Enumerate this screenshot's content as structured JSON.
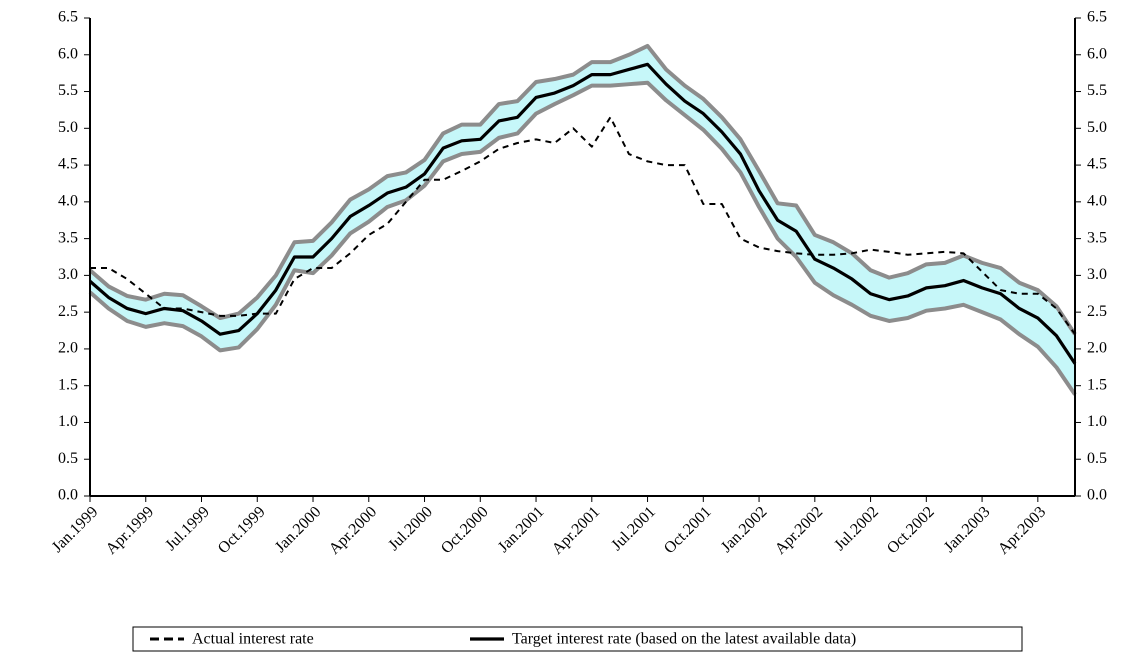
{
  "chart_data": {
    "type": "line",
    "categories": [
      "Jan.1999",
      null,
      null,
      "Apr.1999",
      null,
      null,
      "Jul.1999",
      null,
      null,
      "Oct.1999",
      null,
      null,
      "Jan.2000",
      null,
      null,
      "Apr.2000",
      null,
      null,
      "Jul.2000",
      null,
      null,
      "Oct.2000",
      null,
      null,
      "Jan.2001",
      null,
      null,
      "Apr.2001",
      null,
      null,
      "Jul.2001",
      null,
      null,
      "Oct.2001",
      null,
      null,
      "Jan.2002",
      null,
      null,
      "Apr.2002",
      null,
      null,
      "Jul.2002",
      null,
      null,
      "Oct.2002",
      null,
      null,
      "Jan.2003",
      null,
      null,
      "Apr.2003",
      null,
      null
    ],
    "series": [
      {
        "name": "Actual interest rate",
        "color": "#000000",
        "dash": true,
        "values": [
          3.1,
          3.1,
          2.95,
          2.75,
          2.55,
          2.55,
          2.5,
          2.45,
          2.45,
          2.48,
          2.48,
          2.95,
          3.1,
          3.1,
          3.3,
          3.55,
          3.7,
          4.0,
          4.3,
          4.3,
          4.42,
          4.55,
          4.72,
          4.8,
          4.85,
          4.8,
          5.0,
          4.75,
          5.15,
          4.65,
          4.55,
          4.5,
          4.5,
          3.97,
          3.97,
          3.5,
          3.38,
          3.33,
          3.3,
          3.28,
          3.28,
          3.3,
          3.35,
          3.32,
          3.28,
          3.3,
          3.32,
          3.3,
          3.05,
          2.8,
          2.75,
          2.75,
          2.55,
          2.2
        ]
      },
      {
        "name": "Target interest rate (based on the latest available data)",
        "color": "#000000",
        "dash": false,
        "values": [
          2.92,
          2.7,
          2.55,
          2.48,
          2.55,
          2.52,
          2.38,
          2.2,
          2.25,
          2.48,
          2.8,
          3.25,
          3.25,
          3.5,
          3.8,
          3.95,
          4.12,
          4.2,
          4.38,
          4.73,
          4.83,
          4.85,
          5.1,
          5.15,
          5.42,
          5.48,
          5.58,
          5.73,
          5.73,
          5.8,
          5.87,
          5.6,
          5.37,
          5.2,
          4.95,
          4.65,
          4.15,
          3.75,
          3.6,
          3.22,
          3.1,
          2.95,
          2.75,
          2.67,
          2.72,
          2.83,
          2.86,
          2.93,
          2.83,
          2.75,
          2.55,
          2.42,
          2.18,
          1.8
        ]
      }
    ],
    "band": {
      "color": "#c6f7f9",
      "line_color": "#8c8c8c",
      "upper": [
        3.07,
        2.85,
        2.72,
        2.67,
        2.75,
        2.73,
        2.58,
        2.42,
        2.48,
        2.7,
        3.0,
        3.45,
        3.47,
        3.72,
        4.03,
        4.17,
        4.35,
        4.4,
        4.57,
        4.93,
        5.05,
        5.05,
        5.33,
        5.37,
        5.63,
        5.67,
        5.73,
        5.9,
        5.9,
        6.0,
        6.12,
        5.8,
        5.58,
        5.4,
        5.15,
        4.85,
        4.42,
        3.98,
        3.95,
        3.55,
        3.45,
        3.3,
        3.07,
        2.97,
        3.03,
        3.15,
        3.17,
        3.27,
        3.17,
        3.1,
        2.9,
        2.8,
        2.58,
        2.2
      ],
      "lower": [
        2.77,
        2.55,
        2.38,
        2.3,
        2.35,
        2.31,
        2.17,
        1.98,
        2.02,
        2.27,
        2.6,
        3.07,
        3.03,
        3.27,
        3.57,
        3.73,
        3.93,
        4.02,
        4.22,
        4.55,
        4.65,
        4.68,
        4.87,
        4.93,
        5.2,
        5.33,
        5.45,
        5.58,
        5.58,
        5.6,
        5.62,
        5.38,
        5.18,
        4.98,
        4.72,
        4.4,
        3.93,
        3.5,
        3.25,
        2.9,
        2.73,
        2.6,
        2.45,
        2.38,
        2.42,
        2.52,
        2.55,
        2.6,
        2.5,
        2.4,
        2.2,
        2.03,
        1.75,
        1.38
      ]
    },
    "ylim": [
      0,
      6.5
    ],
    "yticks": [
      {
        "value": 0,
        "label": "0.0"
      },
      0.5,
      {
        "value": 1,
        "label": "1.0"
      },
      1.5,
      {
        "value": 2,
        "label": "2.0"
      },
      2.5,
      {
        "value": 3,
        "label": "3.0"
      },
      3.5,
      {
        "value": 4,
        "label": "4.0"
      },
      4.5,
      {
        "value": 5,
        "label": "5.0"
      },
      5.5,
      {
        "value": 6,
        "label": "6.0"
      },
      6.5
    ],
    "y2lim": [
      0,
      6.5
    ],
    "y2ticks": [
      {
        "value": 0,
        "label": "0.0"
      },
      0.5,
      {
        "value": 1,
        "label": "1.0"
      },
      1.5,
      {
        "value": 2,
        "label": "2.0"
      },
      2.5,
      {
        "value": 3,
        "label": "3.0"
      },
      3.5,
      {
        "value": 4,
        "label": "4.0"
      },
      4.5,
      {
        "value": 5,
        "label": "5.0"
      },
      5.5,
      {
        "value": 6,
        "label": "6.0"
      },
      6.5
    ],
    "grid": false
  }
}
